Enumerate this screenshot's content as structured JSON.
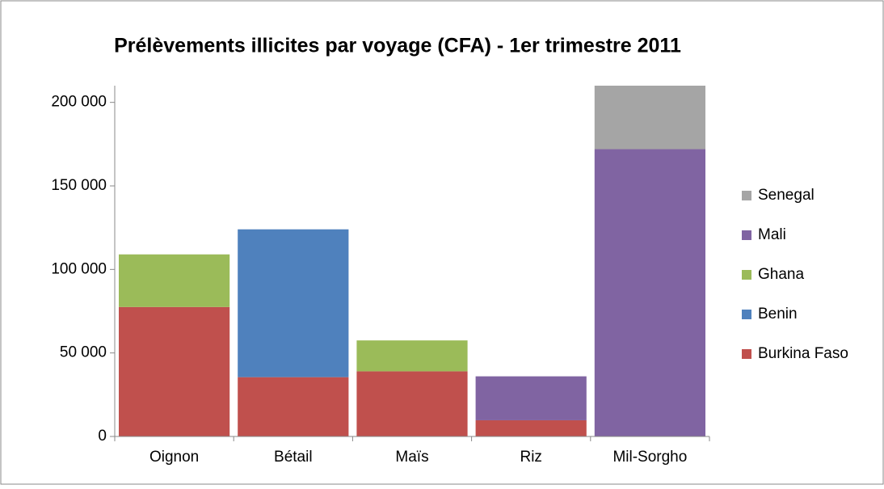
{
  "chart_data": {
    "type": "stacked_bar",
    "title": "Prélèvements illicites par voyage (CFA) - 1er trimestre 2011",
    "categories": [
      "Oignon",
      "Bétail",
      "Maïs",
      "Riz",
      "Mil-Sorgho"
    ],
    "series": [
      {
        "name": "Burkina Faso",
        "color": "#c0504d",
        "values": [
          77500,
          35500,
          39000,
          9700,
          0
        ]
      },
      {
        "name": "Benin",
        "color": "#4f81bd",
        "values": [
          0,
          88500,
          0,
          0,
          0
        ]
      },
      {
        "name": "Ghana",
        "color": "#9bbb59",
        "values": [
          31500,
          0,
          18500,
          0,
          0
        ]
      },
      {
        "name": "Mali",
        "color": "#8064a2",
        "values": [
          0,
          0,
          0,
          26300,
          172000
        ]
      },
      {
        "name": "Senegal",
        "color": "#a5a5a5",
        "values": [
          0,
          0,
          0,
          0,
          38000
        ]
      }
    ],
    "ylim": [
      0,
      210000
    ],
    "yticks": [
      {
        "value": 0,
        "label": "0"
      },
      {
        "value": 50000,
        "label": "50 000"
      },
      {
        "value": 100000,
        "label": "100 000"
      },
      {
        "value": 150000,
        "label": "150 000"
      },
      {
        "value": 200000,
        "label": "200 000"
      }
    ],
    "grid": false,
    "legend": "right"
  }
}
